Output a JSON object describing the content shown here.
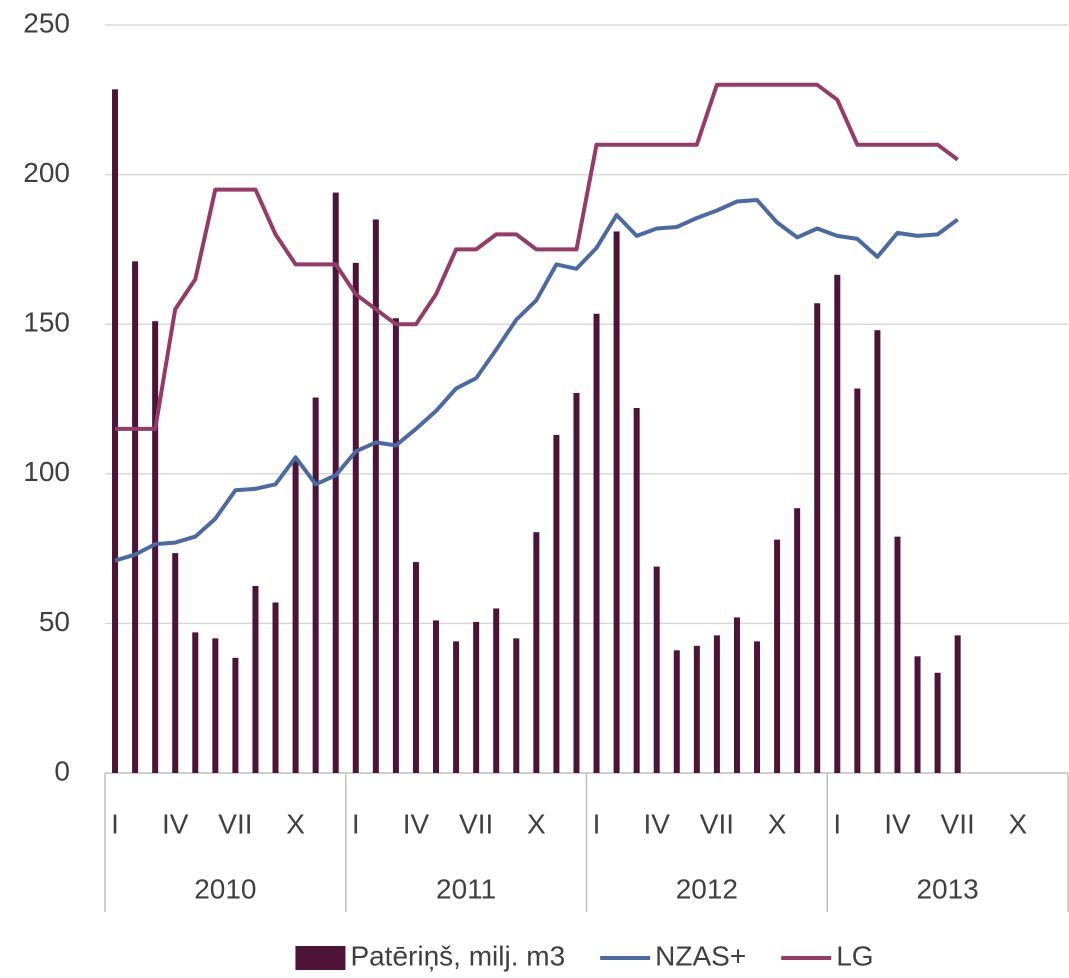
{
  "chart_data": {
    "type": "combo",
    "categories": [
      "I",
      null,
      null,
      "IV",
      null,
      null,
      "VII",
      null,
      null,
      "X",
      null,
      null,
      "I",
      null,
      null,
      "IV",
      null,
      null,
      "VII",
      null,
      null,
      "X",
      null,
      null,
      "I",
      null,
      null,
      "IV",
      null,
      null,
      "VII",
      null,
      null,
      "X",
      null,
      null,
      "I",
      null,
      null,
      "IV",
      null,
      null,
      "VII",
      null,
      null,
      "X",
      null,
      null
    ],
    "years": [
      "2010",
      "2011",
      "2012",
      "2013"
    ],
    "ylim": [
      0,
      250
    ],
    "yticks": [
      0,
      50,
      100,
      150,
      200,
      250
    ],
    "grid": true,
    "legend": "bottom",
    "series": [
      {
        "name": "Patēriņš, milj. m3",
        "type": "bar",
        "color": "#4e1438",
        "values": [
          228.5,
          171,
          151,
          73.5,
          47,
          45,
          38.5,
          62.5,
          57,
          105,
          125.5,
          194,
          170.5,
          185,
          152,
          70.5,
          51,
          44,
          50.5,
          55,
          45,
          80.5,
          113,
          127,
          153.5,
          181,
          122,
          69,
          41,
          42.5,
          46,
          52,
          44,
          78,
          88.5,
          157,
          166.5,
          128.5,
          148,
          79,
          39,
          33.5,
          46,
          null,
          null,
          null,
          null,
          null
        ]
      },
      {
        "name": "NZAS+",
        "type": "line",
        "color": "#4a6aa5",
        "values": [
          71,
          73,
          76.5,
          77,
          79,
          85,
          94.5,
          95,
          96.5,
          105.5,
          96.5,
          99.5,
          107.5,
          110.5,
          109.5,
          115,
          121,
          128.5,
          132,
          141.5,
          151.5,
          158,
          170,
          168.5,
          175.5,
          186.5,
          179.5,
          182,
          182.5,
          185.5,
          188,
          191,
          191.5,
          184,
          179,
          182,
          179.5,
          178.5,
          172.5,
          180.5,
          179.5,
          180,
          185,
          null,
          null,
          null,
          null,
          null
        ]
      },
      {
        "name": "LG",
        "type": "line",
        "color": "#973a68",
        "values": [
          115,
          115,
          115,
          155,
          165,
          195,
          195,
          195,
          180,
          170,
          170,
          170,
          160,
          155,
          150,
          150,
          160,
          175,
          175,
          180,
          180,
          175,
          175,
          175,
          210,
          210,
          210,
          210,
          210,
          210,
          230,
          230,
          230,
          230,
          230,
          230,
          225,
          210,
          210,
          210,
          210,
          210,
          205,
          null,
          null,
          null,
          null,
          null
        ]
      }
    ]
  }
}
